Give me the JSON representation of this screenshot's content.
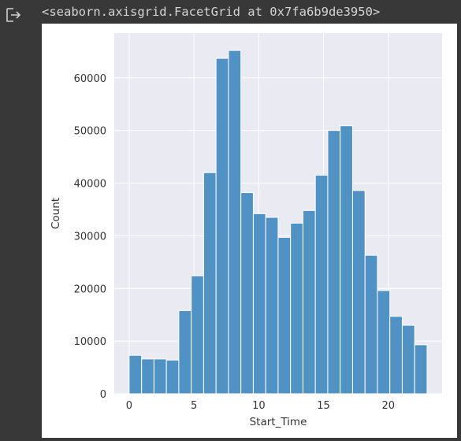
{
  "output": {
    "text": "<seaborn.axisgrid.FacetGrid at 0x7fa6b9de3950>",
    "icon": "output-arrow-icon"
  },
  "colors": {
    "page_bg": "#383838",
    "panel_bg": "#ffffff",
    "axes_bg": "#eaeaf2",
    "grid": "#ffffff",
    "bar_fill": "#4f92c3",
    "bar_edge": "#ffffff"
  },
  "chart_data": {
    "type": "bar",
    "style": "seaborn histplot (darkgrid)",
    "xlabel": "Start_Time",
    "ylabel": "Count",
    "xlim": [
      -1.15,
      24.15
    ],
    "ylim": [
      0,
      68500
    ],
    "xticks": [
      0,
      5,
      10,
      15,
      20
    ],
    "xtick_labels": [
      "0",
      "5",
      "10",
      "15",
      "20"
    ],
    "yticks": [
      0,
      10000,
      20000,
      30000,
      40000,
      50000,
      60000
    ],
    "ytick_labels": [
      "0",
      "10000",
      "20000",
      "30000",
      "40000",
      "50000",
      "60000"
    ],
    "bin_width": 0.958,
    "bin_edges_start": 0,
    "values": [
      7300,
      6600,
      6600,
      6400,
      15800,
      22400,
      42000,
      63700,
      65200,
      38200,
      34200,
      33500,
      29700,
      32400,
      34800,
      41500,
      50000,
      50900,
      38600,
      26300,
      19600,
      14700,
      13000,
      9300
    ],
    "grid": true,
    "legend": false
  }
}
